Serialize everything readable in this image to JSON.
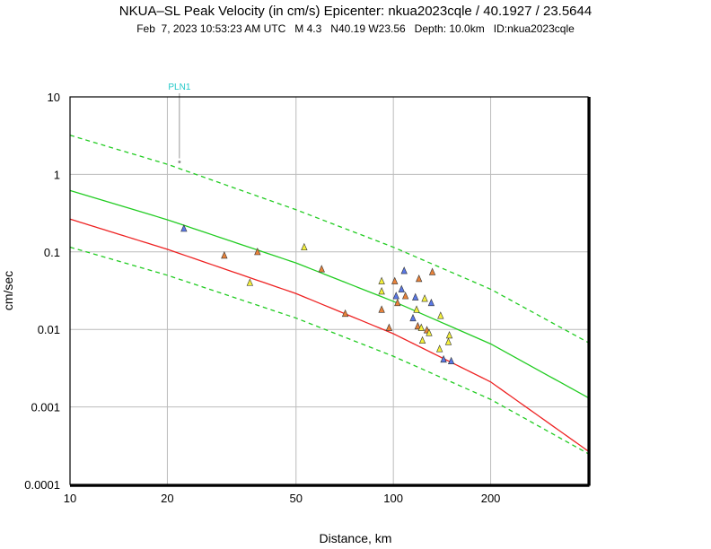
{
  "header": {
    "title": "NKUA–SL Peak Velocity (in cm/s) Epicenter: nkua2023cqle / 40.1927 / 23.5644",
    "subtitle": "Feb  7, 2023 10:53:23 AM UTC   M 4.3   N40.19 W23.56   Depth: 10.0km   ID:nkua2023cqle"
  },
  "chart_data": {
    "type": "scatter",
    "xlabel": "Distance, km",
    "ylabel": "cm/sec",
    "xscale": "log",
    "yscale": "log",
    "xlim": [
      10,
      400
    ],
    "ylim": [
      0.0001,
      10
    ],
    "grid": true,
    "x_ticks": [
      10,
      20,
      50,
      100,
      200
    ],
    "x_tick_labels": [
      "10",
      "20",
      "50",
      "100",
      "200"
    ],
    "y_ticks": [
      10,
      1,
      0.1,
      0.01,
      0.001,
      0.0001
    ],
    "y_tick_labels": [
      "10",
      "1",
      "0.1",
      "0.01",
      "0.001",
      "0.0001"
    ],
    "colors": {
      "median_curve": "#22cc22",
      "bound_curves": "#22cc22",
      "model_curve": "#ee2222",
      "grid": "#bbbbbb",
      "station_label": "#22c8c8",
      "marker_orange": "#e8823a",
      "marker_yellow": "#f4f03c",
      "marker_blue": "#5a78e6",
      "marker_gray": "#909090"
    },
    "series": [
      {
        "style": "solid",
        "color": "#22cc22",
        "x": [
          10,
          20,
          50,
          100,
          200,
          400
        ],
        "y": [
          0.62,
          0.26,
          0.072,
          0.023,
          0.0065,
          0.00132
        ]
      },
      {
        "style": "dashed",
        "color": "#22cc22",
        "x": [
          10,
          20,
          50,
          100,
          200,
          400
        ],
        "y": [
          3.2,
          1.35,
          0.35,
          0.115,
          0.033,
          0.0068
        ]
      },
      {
        "style": "dashed",
        "color": "#22cc22",
        "x": [
          10,
          20,
          50,
          100,
          200,
          400
        ],
        "y": [
          0.115,
          0.05,
          0.014,
          0.0045,
          0.00125,
          0.00025
        ]
      },
      {
        "style": "solid",
        "color": "#ee2222",
        "x": [
          10,
          20,
          50,
          100,
          200,
          400
        ],
        "y": [
          0.265,
          0.108,
          0.029,
          0.0088,
          0.0021,
          0.00027
        ]
      }
    ],
    "stations": [
      {
        "x": 22.5,
        "y": 0.2,
        "color": "blue"
      },
      {
        "x": 30,
        "y": 0.09,
        "color": "orange"
      },
      {
        "x": 38,
        "y": 0.1,
        "color": "orange"
      },
      {
        "x": 36,
        "y": 0.04,
        "color": "yellow"
      },
      {
        "x": 53,
        "y": 0.115,
        "color": "yellow"
      },
      {
        "x": 60,
        "y": 0.06,
        "color": "orange"
      },
      {
        "x": 71,
        "y": 0.016,
        "color": "orange"
      },
      {
        "x": 92,
        "y": 0.042,
        "color": "yellow"
      },
      {
        "x": 92,
        "y": 0.031,
        "color": "yellow"
      },
      {
        "x": 92,
        "y": 0.018,
        "color": "orange"
      },
      {
        "x": 97,
        "y": 0.0105,
        "color": "orange"
      },
      {
        "x": 101,
        "y": 0.042,
        "color": "orange"
      },
      {
        "x": 102,
        "y": 0.027,
        "color": "blue"
      },
      {
        "x": 103,
        "y": 0.022,
        "color": "orange"
      },
      {
        "x": 106,
        "y": 0.033,
        "color": "blue"
      },
      {
        "x": 108,
        "y": 0.057,
        "color": "blue"
      },
      {
        "x": 109,
        "y": 0.027,
        "color": "orange"
      },
      {
        "x": 115,
        "y": 0.014,
        "color": "blue"
      },
      {
        "x": 117,
        "y": 0.026,
        "color": "blue"
      },
      {
        "x": 118,
        "y": 0.018,
        "color": "yellow"
      },
      {
        "x": 119,
        "y": 0.011,
        "color": "orange"
      },
      {
        "x": 120,
        "y": 0.045,
        "color": "orange"
      },
      {
        "x": 122,
        "y": 0.0105,
        "color": "yellow"
      },
      {
        "x": 123,
        "y": 0.0072,
        "color": "yellow"
      },
      {
        "x": 125,
        "y": 0.025,
        "color": "yellow"
      },
      {
        "x": 127,
        "y": 0.0098,
        "color": "orange"
      },
      {
        "x": 129,
        "y": 0.009,
        "color": "yellow"
      },
      {
        "x": 131,
        "y": 0.022,
        "color": "blue"
      },
      {
        "x": 132,
        "y": 0.055,
        "color": "orange"
      },
      {
        "x": 139,
        "y": 0.0056,
        "color": "yellow"
      },
      {
        "x": 140,
        "y": 0.015,
        "color": "yellow"
      },
      {
        "x": 143,
        "y": 0.0041,
        "color": "blue"
      },
      {
        "x": 148,
        "y": 0.0069,
        "color": "yellow"
      },
      {
        "x": 149,
        "y": 0.0084,
        "color": "yellow"
      },
      {
        "x": 151,
        "y": 0.0039,
        "color": "blue"
      }
    ],
    "labeled_station": {
      "label": "PLN1",
      "x": 21.8,
      "y": 1.45
    }
  }
}
